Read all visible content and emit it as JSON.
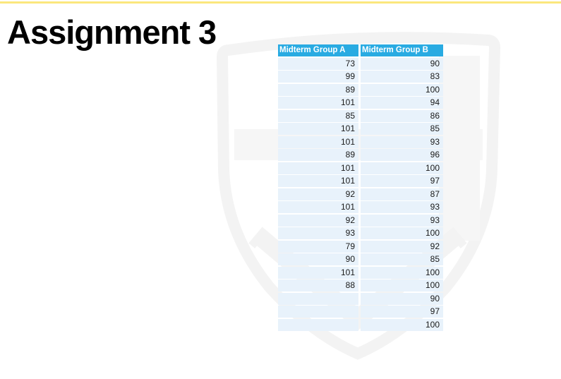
{
  "page": {
    "title": "Assignment 3"
  },
  "colors": {
    "top_border": "#FBE77D",
    "header_bg": "#29ABE2",
    "header_text": "#FFFFFF",
    "row_bg": "#E8F2FB",
    "cell_text": "#1A1A1A",
    "watermark": "#F4F4F4"
  },
  "table": {
    "columns": [
      "Midterm Group A",
      "Midterm Group B"
    ],
    "rows": [
      [
        "73",
        "90"
      ],
      [
        "99",
        "83"
      ],
      [
        "89",
        "100"
      ],
      [
        "101",
        "94"
      ],
      [
        "85",
        "86"
      ],
      [
        "101",
        "85"
      ],
      [
        "101",
        "93"
      ],
      [
        "89",
        "96"
      ],
      [
        "101",
        "100"
      ],
      [
        "101",
        "97"
      ],
      [
        "92",
        "87"
      ],
      [
        "101",
        "93"
      ],
      [
        "92",
        "93"
      ],
      [
        "93",
        "100"
      ],
      [
        "79",
        "92"
      ],
      [
        "90",
        "85"
      ],
      [
        "101",
        "100"
      ],
      [
        "88",
        "100"
      ],
      [
        "",
        "90"
      ],
      [
        "",
        "97"
      ],
      [
        "",
        "100"
      ]
    ]
  },
  "watermark": {
    "icon": "shield-crest-watermark"
  }
}
